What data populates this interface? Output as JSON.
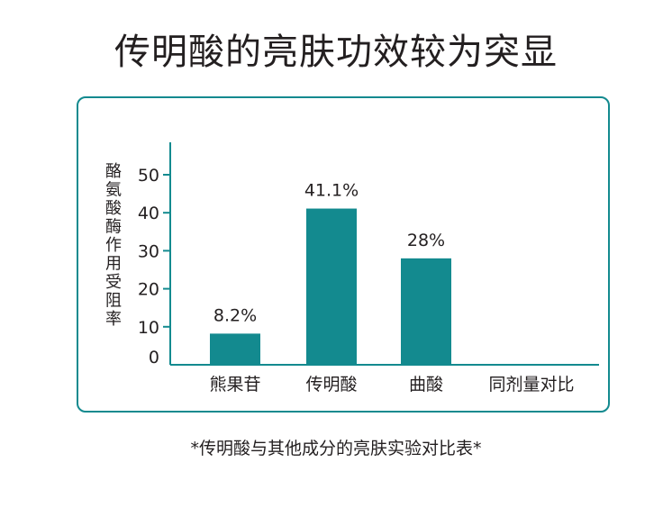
{
  "title": "传明酸的亮肤功效较为突显",
  "footnote": "*传明酸与其他成分的亮肤实验对比表*",
  "colors": {
    "bar": "#138a8f",
    "frame": "#138a8f",
    "axis": "#138a8f",
    "text": "#231f20"
  },
  "chart_data": {
    "type": "bar",
    "ylabel": "酪氨酸酶作用受阻率",
    "xlabel": "",
    "ylim": [
      0,
      50
    ],
    "yticks": [
      0,
      10,
      20,
      30,
      40,
      50
    ],
    "categories": [
      "熊果苷",
      "传明酸",
      "曲酸",
      "同剂量对比"
    ],
    "values": [
      8.2,
      41.1,
      28,
      null
    ],
    "data_labels": [
      "8.2%",
      "41.1%",
      "28%",
      ""
    ],
    "grid": false,
    "legend": "none"
  }
}
